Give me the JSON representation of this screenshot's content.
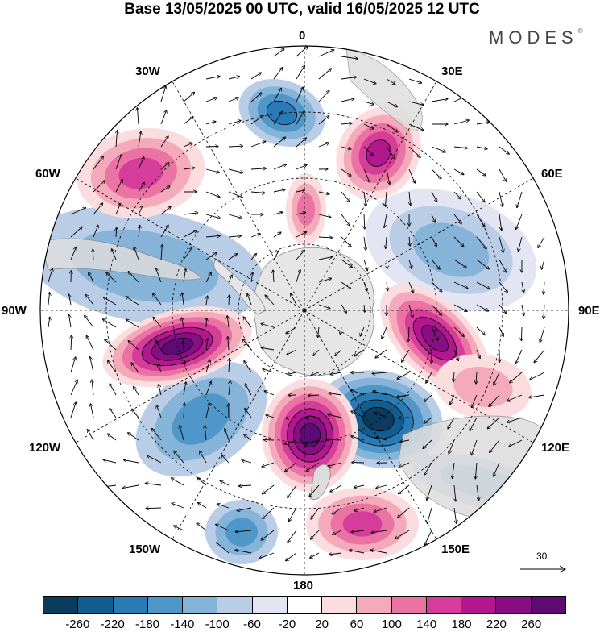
{
  "title": "Base 13/05/2025 00 UTC, valid 16/05/2025 12 UTC",
  "brand": "MODES",
  "brand_mark": "®",
  "longitude_labels": {
    "top": "0",
    "top_right": "30E",
    "upper_right": "60E",
    "right": "90E",
    "lower_right": "120E",
    "bottom_right": "150E",
    "bottom": "180",
    "bottom_left": "150W",
    "lower_left": "120W",
    "left": "90W",
    "upper_left": "60W",
    "top_left": "30W"
  },
  "reference_vector": {
    "value": "30"
  },
  "colorbar": {
    "colors": [
      "#0b3c5d",
      "#125d8f",
      "#2a7ab5",
      "#4f97c8",
      "#86b3d8",
      "#b9cde6",
      "#e3e6f2",
      "#ffffff",
      "#fbdcdf",
      "#f4aabb",
      "#ea73a4",
      "#d63c99",
      "#b3178f",
      "#8a0e83",
      "#5e0a74"
    ],
    "tick_labels": [
      "-260",
      "-220",
      "-180",
      "-140",
      "-100",
      "-60",
      "-20",
      "20",
      "60",
      "100",
      "140",
      "180",
      "220",
      "260"
    ]
  },
  "map_colors": {
    "land": "#e5e5e5",
    "land_edge": "#8a8a8a",
    "grid": "#000000"
  }
}
